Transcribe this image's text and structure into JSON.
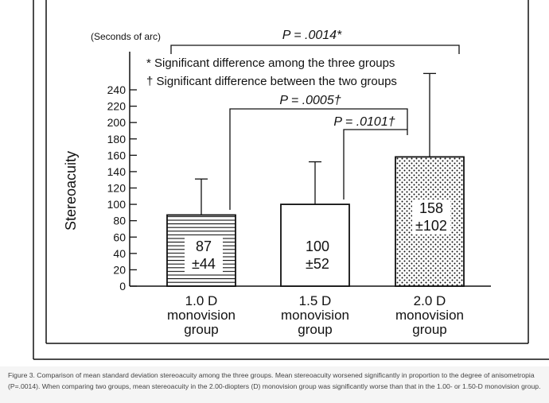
{
  "colors": {
    "ink": "#111111",
    "caption_text": "#444444",
    "caption_bg": "#f5f5f5"
  },
  "chart_data": {
    "type": "bar",
    "title": "",
    "unit_label": "(Seconds of arc)",
    "ylabel": "Stereoacuity",
    "ylim": [
      0,
      240
    ],
    "yticks": [
      "0",
      "20",
      "40",
      "60",
      "80",
      "100",
      "120",
      "140",
      "160",
      "180",
      "200",
      "220",
      "240"
    ],
    "grid": false,
    "categories": [
      {
        "lines": [
          "1.0 D",
          "monovision",
          "group"
        ],
        "mean": 87,
        "sd": 44,
        "pattern": "horizontal-stripes",
        "label_mean": "87",
        "label_sd": "±44"
      },
      {
        "lines": [
          "1.5 D",
          "monovision",
          "group"
        ],
        "mean": 100,
        "sd": 52,
        "pattern": "plain",
        "label_mean": "100",
        "label_sd": "±52"
      },
      {
        "lines": [
          "2.0 D",
          "monovision",
          "group"
        ],
        "mean": 158,
        "sd": 102,
        "pattern": "dotted",
        "label_mean": "158",
        "label_sd": "±102"
      }
    ],
    "legend": {
      "asterisk": "* Significant difference among the three groups",
      "dagger": "† Significant difference between the two groups"
    },
    "annotations": [
      {
        "text": "P = .0014*",
        "from": 0,
        "to": 2
      },
      {
        "text": "P = .0005†",
        "from": 0,
        "to": 2
      },
      {
        "text": "P = .0101†",
        "from": 1,
        "to": 2
      }
    ]
  },
  "caption": "Figure 3. Comparison of mean standard deviation stereoacuity among the three groups. Mean stereoacuity worsened significantly in proportion to the degree of anisometropia (P=.0014). When comparing two groups, mean stereoacuity in the 2.00-diopters (D) monovision group was significantly worse than that in the 1.00- or 1.50-D monovision group."
}
